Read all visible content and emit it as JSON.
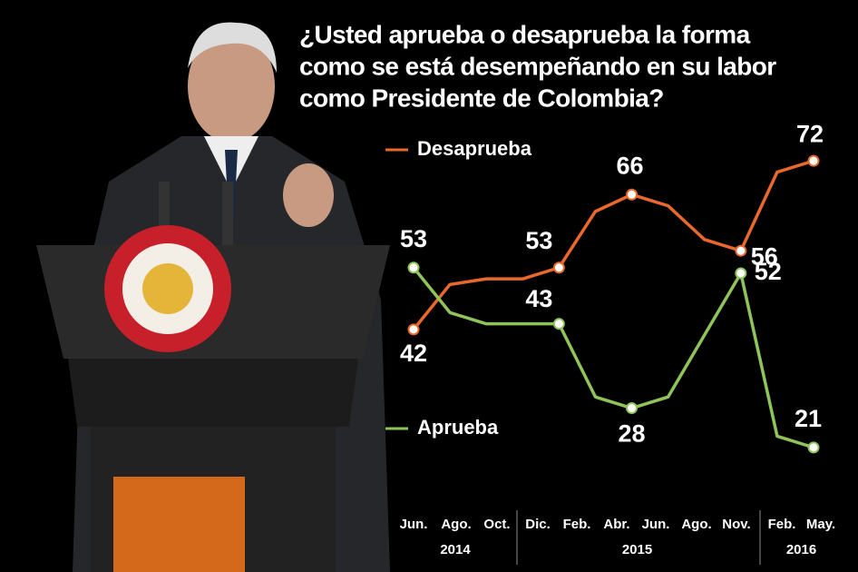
{
  "chart_data": {
    "type": "line",
    "title": [
      "¿Usted aprueba o desaprueba la forma",
      "como se está desempeñando en su labor",
      "como Presidente de Colombia?"
    ],
    "categories": [
      "Jun.",
      "Ago.",
      "Oct.",
      "Dic.",
      null,
      "Feb.",
      "Abr.",
      "Jun.",
      "Ago.",
      "Nov.",
      "Feb.",
      "May."
    ],
    "x_groups": [
      "2014",
      "2015",
      "2016"
    ],
    "series": [
      {
        "name": "Desaprueba",
        "color": "#e8692b",
        "values": [
          42,
          50,
          51,
          51,
          53,
          63,
          66,
          64,
          58,
          56,
          70,
          72
        ]
      },
      {
        "name": "Aprueba",
        "color": "#8fc45a",
        "values": [
          53,
          45,
          43,
          43,
          43,
          30,
          28,
          30,
          41,
          52,
          23,
          21
        ]
      }
    ],
    "ylim": [
      15,
      78
    ]
  }
}
